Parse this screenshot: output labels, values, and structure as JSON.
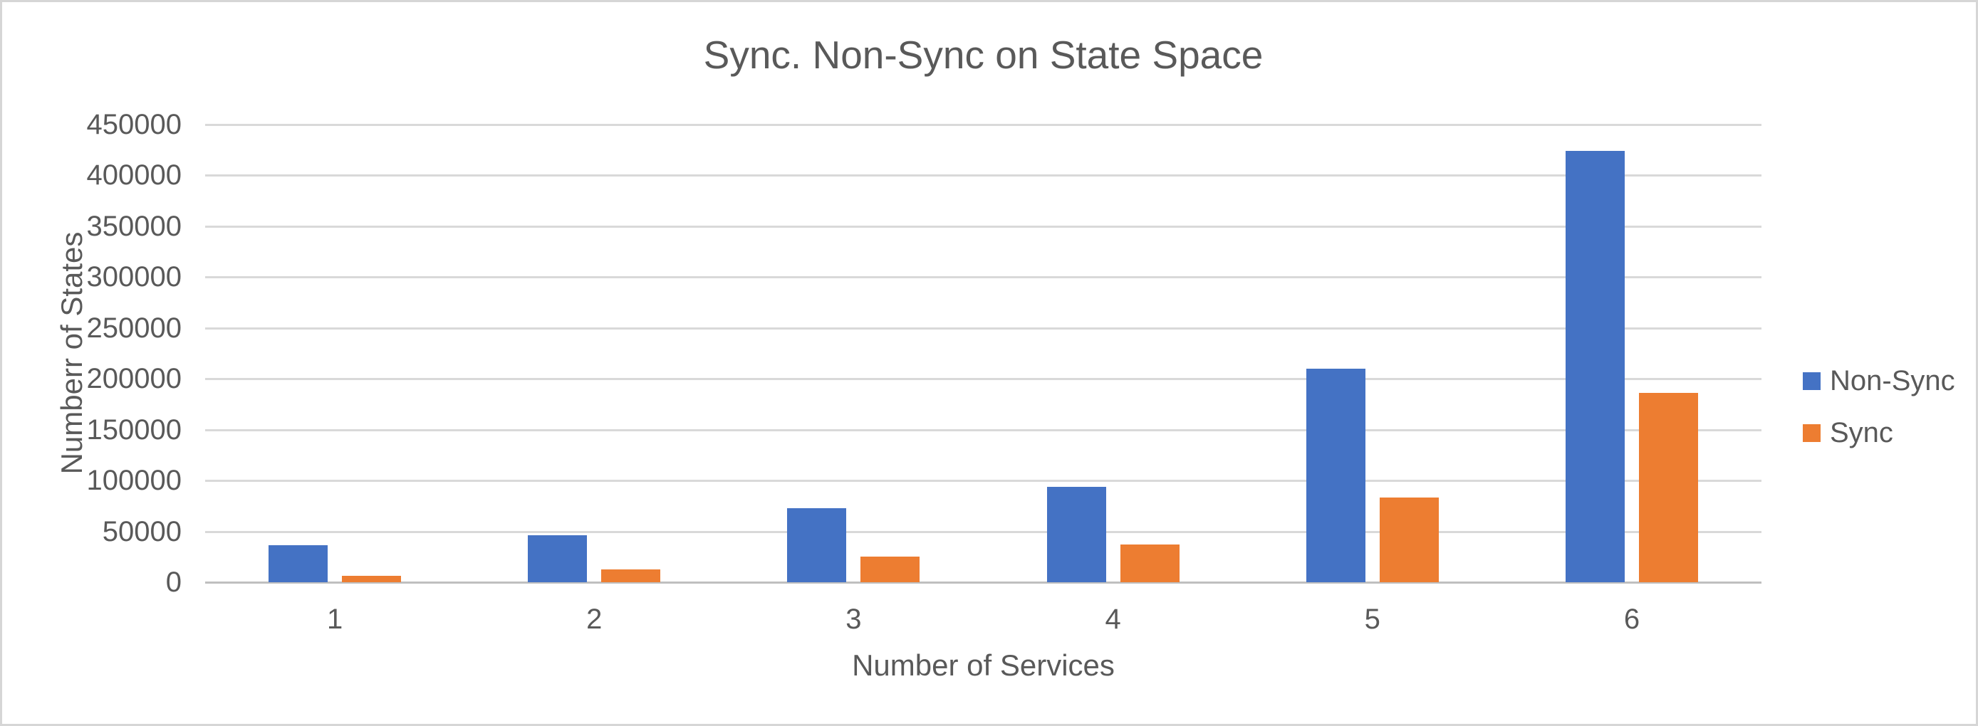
{
  "chart_data": {
    "type": "bar",
    "title": "Sync. Non-Sync on State Space",
    "xlabel": "Number of Services",
    "ylabel": "Numberr of States",
    "categories": [
      "1",
      "2",
      "3",
      "4",
      "5",
      "6"
    ],
    "series": [
      {
        "name": "Non-Sync",
        "color": "#4472C4",
        "values": [
          36500,
          46500,
          72500,
          94000,
          210000,
          424000
        ]
      },
      {
        "name": "Sync",
        "color": "#ED7D31",
        "values": [
          6500,
          12500,
          25000,
          37000,
          83000,
          186000
        ]
      }
    ],
    "ylim": [
      0,
      450000
    ],
    "ytick_step": 50000,
    "ytick_labels": [
      "450000",
      "400000",
      "350000",
      "300000",
      "250000",
      "200000",
      "150000",
      "100000",
      "50000",
      "0"
    ],
    "grid": true,
    "legend_position": "right",
    "text_color": "#595959",
    "gridline_color": "#D9D9D9",
    "axis_line_color": "#BFBFBF",
    "background_color": "#FFFFFF"
  }
}
